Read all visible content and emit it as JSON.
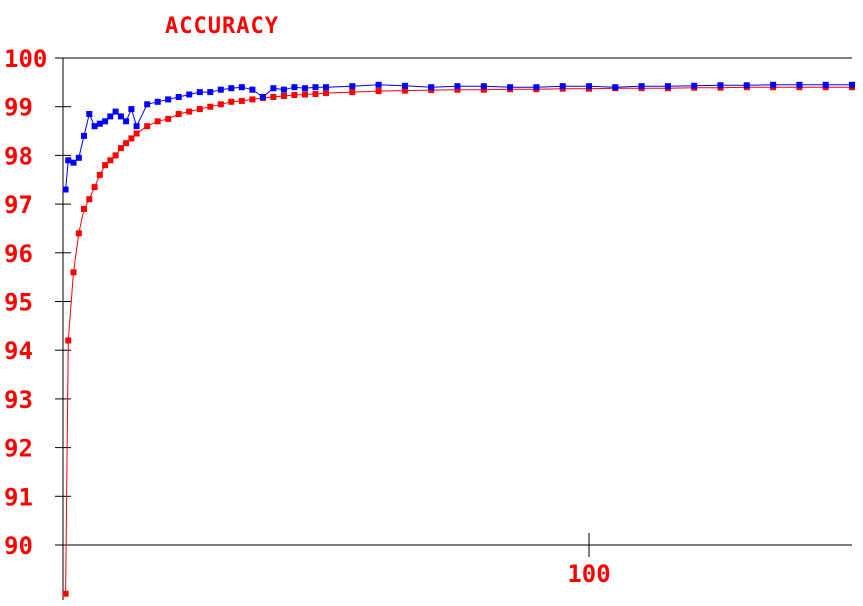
{
  "chart_data": {
    "type": "line",
    "title": "ACCURACY",
    "xlabel": "",
    "ylabel": "",
    "xlim": [
      0,
      150
    ],
    "ylim": [
      90,
      100
    ],
    "x_ticks": [
      100
    ],
    "y_ticks": [
      90,
      91,
      92,
      93,
      94,
      95,
      96,
      97,
      98,
      99,
      100
    ],
    "x_tick_labels": [
      "100"
    ],
    "y_tick_labels": [
      "90",
      "91",
      "92",
      "93",
      "94",
      "95",
      "96",
      "97",
      "98",
      "99",
      "100"
    ],
    "grid": false,
    "legend": "none",
    "colors": {
      "text": "#ff0000",
      "axis": "#000000",
      "series_red": "#ff0000",
      "series_blue": "#0000ff"
    },
    "series": [
      {
        "color": "#ff0000",
        "x": [
          0.5,
          1,
          2,
          3,
          4,
          5,
          6,
          7,
          8,
          9,
          10,
          11,
          12,
          13,
          14,
          16,
          18,
          20,
          22,
          24,
          26,
          28,
          30,
          32,
          34,
          36,
          38,
          40,
          42,
          44,
          46,
          48,
          50,
          55,
          60,
          65,
          70,
          75,
          80,
          85,
          90,
          95,
          100,
          105,
          110,
          115,
          120,
          125,
          130,
          135,
          140,
          145,
          150
        ],
        "values": [
          89.0,
          94.2,
          95.6,
          96.4,
          96.9,
          97.1,
          97.35,
          97.6,
          97.8,
          97.9,
          98.0,
          98.15,
          98.25,
          98.35,
          98.45,
          98.6,
          98.7,
          98.75,
          98.85,
          98.9,
          98.95,
          99.0,
          99.05,
          99.1,
          99.12,
          99.15,
          99.18,
          99.2,
          99.22,
          99.24,
          99.25,
          99.26,
          99.28,
          99.3,
          99.32,
          99.33,
          99.34,
          99.35,
          99.35,
          99.36,
          99.36,
          99.37,
          99.37,
          99.38,
          99.38,
          99.38,
          99.39,
          99.39,
          99.4,
          99.4,
          99.4,
          99.4,
          99.4
        ]
      },
      {
        "color": "#0000ff",
        "x": [
          0.5,
          1,
          2,
          3,
          4,
          5,
          6,
          7,
          8,
          9,
          10,
          11,
          12,
          13,
          14,
          16,
          18,
          20,
          22,
          24,
          26,
          28,
          30,
          32,
          34,
          36,
          38,
          40,
          42,
          44,
          46,
          48,
          50,
          55,
          60,
          65,
          70,
          75,
          80,
          85,
          90,
          95,
          100,
          105,
          110,
          115,
          120,
          125,
          130,
          135,
          140,
          145,
          150
        ],
        "values": [
          97.3,
          97.9,
          97.85,
          97.95,
          98.4,
          98.85,
          98.6,
          98.65,
          98.7,
          98.8,
          98.9,
          98.8,
          98.7,
          98.95,
          98.6,
          99.05,
          99.1,
          99.15,
          99.2,
          99.25,
          99.3,
          99.3,
          99.35,
          99.38,
          99.4,
          99.35,
          99.2,
          99.38,
          99.35,
          99.4,
          99.38,
          99.4,
          99.4,
          99.42,
          99.45,
          99.43,
          99.4,
          99.42,
          99.42,
          99.4,
          99.4,
          99.42,
          99.42,
          99.4,
          99.42,
          99.42,
          99.43,
          99.44,
          99.44,
          99.45,
          99.45,
          99.45,
          99.45
        ]
      }
    ]
  }
}
